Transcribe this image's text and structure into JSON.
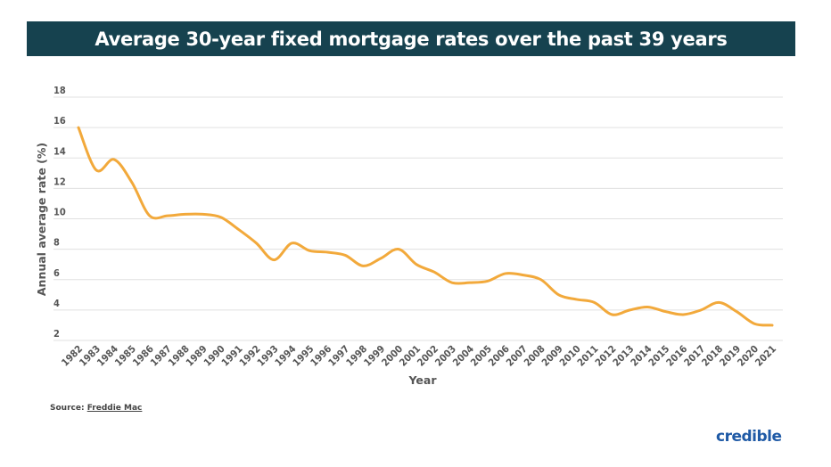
{
  "chart_data": {
    "type": "line",
    "title": "Average 30-year fixed mortgage rates over the past 39 years",
    "xlabel": "Year",
    "ylabel": "Annual average rate (%)",
    "ylim": [
      2,
      18
    ],
    "yticks": [
      2,
      4,
      6,
      8,
      10,
      12,
      14,
      16,
      18
    ],
    "grid": true,
    "line_color": "#f2a93b",
    "x": [
      "1982",
      "1983",
      "1984",
      "1985",
      "1986",
      "1987",
      "1988",
      "1989",
      "1990",
      "1991",
      "1992",
      "1993",
      "1994",
      "1995",
      "1996",
      "1997",
      "1998",
      "1999",
      "2000",
      "2001",
      "2002",
      "2003",
      "2004",
      "2005",
      "2006",
      "2007",
      "2008",
      "2009",
      "2010",
      "2011",
      "2012",
      "2013",
      "2014",
      "2015",
      "2016",
      "2017",
      "2018",
      "2019",
      "2020",
      "2021"
    ],
    "series": [
      {
        "values": [
          16.0,
          13.2,
          13.9,
          12.4,
          10.2,
          10.2,
          10.3,
          10.3,
          10.1,
          9.3,
          8.4,
          7.3,
          8.4,
          7.9,
          7.8,
          7.6,
          6.9,
          7.4,
          8.0,
          7.0,
          6.5,
          5.8,
          5.8,
          5.9,
          6.4,
          6.3,
          6.0,
          5.0,
          4.7,
          4.5,
          3.7,
          4.0,
          4.2,
          3.9,
          3.7,
          4.0,
          4.5,
          3.9,
          3.1,
          3.0
        ]
      }
    ]
  },
  "footer": {
    "source_label": "Source:",
    "source_link": "Freddie Mac",
    "logo": "credible"
  },
  "colors": {
    "title_bg": "#16424f",
    "brand": "#1f5aa6"
  }
}
